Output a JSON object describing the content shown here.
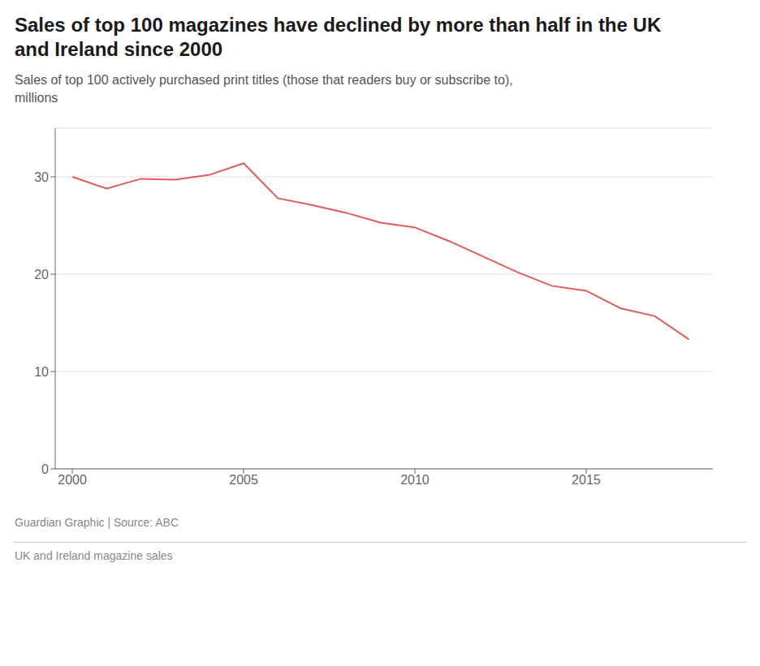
{
  "chart_data": {
    "type": "line",
    "title": "Sales of top 100 magazines have declined by more than half in the UK\nand Ireland since 2000",
    "subtitle": "Sales of top 100 actively purchased print titles (those that readers buy or subscribe to),\nmillions",
    "annotations": [
      "Guardian Graphic | Source: ABC",
      "UK and Ireland magazine sales"
    ],
    "x": [
      2000,
      2001,
      2002,
      2003,
      2004,
      2005,
      2006,
      2007,
      2008,
      2009,
      2010,
      2011,
      2012,
      2013,
      2014,
      2015,
      2016,
      2017,
      2018
    ],
    "values": [
      30.0,
      28.8,
      29.8,
      29.7,
      30.2,
      31.4,
      27.8,
      27.1,
      26.3,
      25.3,
      24.8,
      23.4,
      21.8,
      20.2,
      18.8,
      18.3,
      16.5,
      15.7,
      13.3
    ],
    "color": "#e05c5c",
    "xlim": [
      1999.5,
      2018.7
    ],
    "xticks": [
      2000,
      2005,
      2010,
      2015
    ],
    "ylim": [
      0,
      35
    ],
    "yticks": [
      0,
      10,
      20,
      30
    ],
    "grid": true
  }
}
